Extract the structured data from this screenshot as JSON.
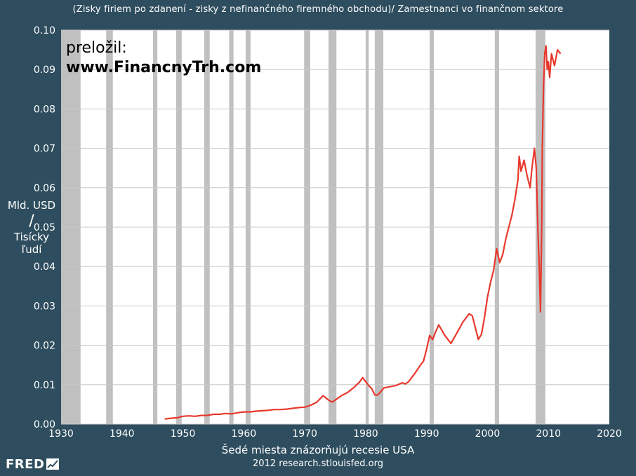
{
  "title": "(Zisky firiem po zdanení - zisky z nefinančného firemného obchodu)/ Zamestnanci vo finančnom sektore",
  "ylabel": {
    "line1": "Mld. USD",
    "line2": "/",
    "line3": "Tisícky",
    "line4": "ľudí"
  },
  "xlabel": "Šedé miesta znázorňujú recesie USA",
  "source": "2012 research.stlouisfed.org",
  "watermark": {
    "line1": "preložil:",
    "line2": "www.FinancnyTrh.com"
  },
  "logo": {
    "text": "FRED",
    "icon": "fred-chart-icon"
  },
  "colors": {
    "background": "#2e4d5e",
    "plot": "#ffffff",
    "grid": "#c8c8c8",
    "recession": "#c0c0c0",
    "line": "#e8392e"
  },
  "chart_data": {
    "type": "line",
    "xlim": [
      1930,
      2020
    ],
    "ylim": [
      0,
      0.1
    ],
    "xticks": [
      "1930",
      "1940",
      "1950",
      "1960",
      "1970",
      "1980",
      "1990",
      "2000",
      "2010",
      "2020"
    ],
    "yticks": [
      "0.00",
      "0.01",
      "0.02",
      "0.03",
      "0.04",
      "0.05",
      "0.06",
      "0.07",
      "0.08",
      "0.09",
      "0.10"
    ],
    "grid": true,
    "recessions": [
      [
        1929.7,
        1933.2
      ],
      [
        1937.4,
        1938.5
      ],
      [
        1945.1,
        1945.8
      ],
      [
        1948.9,
        1949.8
      ],
      [
        1953.5,
        1954.4
      ],
      [
        1957.6,
        1958.3
      ],
      [
        1960.3,
        1961.1
      ],
      [
        1969.9,
        1970.9
      ],
      [
        1973.9,
        1975.2
      ],
      [
        1980.0,
        1980.5
      ],
      [
        1981.5,
        1982.9
      ],
      [
        1990.5,
        1991.2
      ],
      [
        2001.2,
        2001.9
      ],
      [
        2007.9,
        2009.5
      ]
    ],
    "series": [
      {
        "x": [
          1947,
          1948,
          1949,
          1950,
          1951,
          1952,
          1953,
          1954,
          1955,
          1956,
          1957,
          1958,
          1959,
          1960,
          1961,
          1962,
          1963,
          1964,
          1965,
          1966,
          1967,
          1968,
          1969,
          1970,
          1971,
          1972,
          1973,
          1974,
          1974.5,
          1975,
          1976,
          1977,
          1978,
          1979,
          1979.5,
          1980,
          1980.5,
          1981,
          1981.5,
          1982,
          1982.5,
          1983,
          1984,
          1985,
          1986,
          1986.5,
          1987,
          1988,
          1989,
          1989.5,
          1990,
          1990.5,
          1991,
          1991.5,
          1992,
          1993,
          1994,
          1995,
          1996,
          1997,
          1997.5,
          1998,
          1998.5,
          1999,
          1999.5,
          2000,
          2000.5,
          2001,
          2001.5,
          2002,
          2002.5,
          2003,
          2003.5,
          2004,
          2004.5,
          2005,
          2005.2,
          2005.5,
          2006,
          2006.5,
          2007,
          2007.3,
          2007.7,
          2008,
          2008.3,
          2008.5,
          2008.7,
          2008.9,
          2009,
          2009.2,
          2009.4,
          2009.6,
          2009.8,
          2010,
          2010.2,
          2010.5,
          2011,
          2011.5,
          2012
        ],
        "values": [
          0.0013,
          0.0015,
          0.0016,
          0.002,
          0.0021,
          0.002,
          0.0022,
          0.0022,
          0.0025,
          0.0025,
          0.0027,
          0.0026,
          0.0029,
          0.0031,
          0.0031,
          0.0033,
          0.0034,
          0.0035,
          0.0037,
          0.0037,
          0.0038,
          0.004,
          0.0042,
          0.0043,
          0.0048,
          0.0056,
          0.0072,
          0.006,
          0.0056,
          0.0061,
          0.0072,
          0.008,
          0.0092,
          0.0107,
          0.0118,
          0.0108,
          0.0098,
          0.009,
          0.0074,
          0.0074,
          0.0083,
          0.0092,
          0.0095,
          0.0098,
          0.0105,
          0.0102,
          0.0107,
          0.0127,
          0.015,
          0.016,
          0.019,
          0.0225,
          0.0215,
          0.0235,
          0.0252,
          0.0225,
          0.0205,
          0.0232,
          0.026,
          0.028,
          0.0275,
          0.0245,
          0.0215,
          0.0228,
          0.027,
          0.0322,
          0.036,
          0.039,
          0.0445,
          0.041,
          0.043,
          0.047,
          0.05,
          0.053,
          0.057,
          0.062,
          0.068,
          0.0642,
          0.067,
          0.063,
          0.06,
          0.065,
          0.07,
          0.065,
          0.048,
          0.04,
          0.0285,
          0.05,
          0.07,
          0.086,
          0.094,
          0.096,
          0.09,
          0.092,
          0.088,
          0.094,
          0.091,
          0.095,
          0.094
        ]
      }
    ]
  }
}
